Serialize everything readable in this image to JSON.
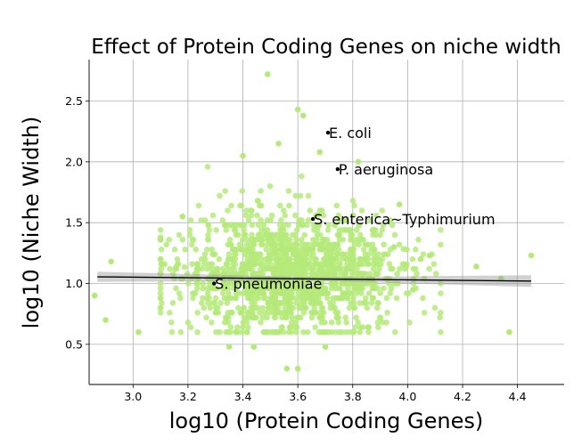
{
  "chart_data": {
    "type": "scatter",
    "title": "Effect of Protein Coding Genes on niche width",
    "xlabel": "log10 (Protein Coding Genes)",
    "ylabel": "log10 (Niche Width)",
    "xlim": [
      2.84,
      4.57
    ],
    "ylim": [
      0.17,
      2.84
    ],
    "xticks": [
      "3.0",
      "3.2",
      "3.4",
      "3.6",
      "3.8",
      "4.0",
      "4.2",
      "4.4"
    ],
    "yticks": [
      "0.5",
      "1.0",
      "1.5",
      "2.0",
      "2.5"
    ],
    "grid": true,
    "point_color": "#b5ea7a",
    "regression": {
      "x": [
        2.87,
        4.45
      ],
      "y": [
        1.055,
        1.02
      ],
      "ci_halfwidth": 0.03,
      "line_color": "#000000"
    },
    "annotations": [
      {
        "label": "E. coli",
        "x": 3.71,
        "y": 2.24
      },
      {
        "label": "P. aeruginosa",
        "x": 3.745,
        "y": 1.94
      },
      {
        "label": "S. enterica~Typhimurium",
        "x": 3.655,
        "y": 1.53
      },
      {
        "label": "S. pneumoniae",
        "x": 3.295,
        "y": 1.0
      }
    ],
    "outliers": [
      {
        "x": 2.86,
        "y": 0.9
      },
      {
        "x": 2.9,
        "y": 0.7
      },
      {
        "x": 2.92,
        "y": 1.18
      },
      {
        "x": 3.02,
        "y": 0.6
      },
      {
        "x": 3.49,
        "y": 2.72
      },
      {
        "x": 3.6,
        "y": 2.43
      },
      {
        "x": 3.62,
        "y": 2.38
      },
      {
        "x": 3.56,
        "y": 0.3
      },
      {
        "x": 3.6,
        "y": 0.3
      },
      {
        "x": 4.08,
        "y": 1.23
      },
      {
        "x": 4.25,
        "y": 1.14
      },
      {
        "x": 4.34,
        "y": 1.04
      },
      {
        "x": 4.37,
        "y": 0.6
      },
      {
        "x": 4.45,
        "y": 1.23
      },
      {
        "x": 3.97,
        "y": 1.65
      },
      {
        "x": 3.82,
        "y": 2.0
      },
      {
        "x": 3.68,
        "y": 2.08
      },
      {
        "x": 3.53,
        "y": 2.15
      },
      {
        "x": 3.4,
        "y": 2.05
      },
      {
        "x": 3.18,
        "y": 1.55
      },
      {
        "x": 3.1,
        "y": 1.2
      },
      {
        "x": 3.95,
        "y": 1.3
      },
      {
        "x": 4.02,
        "y": 0.95
      },
      {
        "x": 3.35,
        "y": 0.48
      },
      {
        "x": 3.44,
        "y": 0.48
      },
      {
        "x": 3.7,
        "y": 0.48
      }
    ],
    "cloud": {
      "count": 1500,
      "x_mean": 3.58,
      "x_sd": 0.2,
      "y_mean": 1.07,
      "y_sd": 0.25
    }
  }
}
